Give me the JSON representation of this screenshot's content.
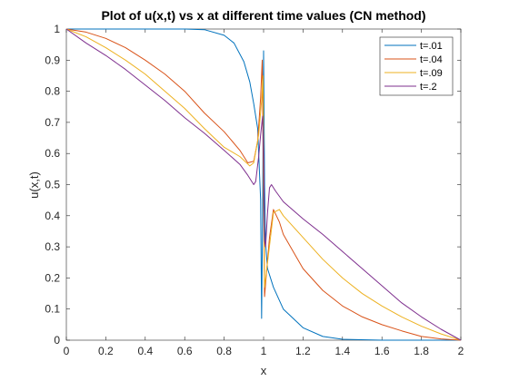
{
  "chart_data": {
    "type": "line",
    "title": "Plot of u(x,t) vs x at different time values (CN method)",
    "xlabel": "x",
    "ylabel": "u(x,t)",
    "xlim": [
      0,
      2
    ],
    "ylim": [
      0,
      1
    ],
    "xticks": [
      "0",
      "0.2",
      "0.4",
      "0.6",
      "0.8",
      "1",
      "1.2",
      "1.4",
      "1.6",
      "1.8",
      "2"
    ],
    "yticks": [
      "0",
      "0.1",
      "0.2",
      "0.3",
      "0.4",
      "0.5",
      "0.6",
      "0.7",
      "0.8",
      "0.9",
      "1"
    ],
    "grid": false,
    "legend_position": "top-right",
    "series": [
      {
        "name": "t=.01",
        "color": "#0072BD",
        "points": [
          [
            0,
            1
          ],
          [
            0.2,
            1
          ],
          [
            0.4,
            1
          ],
          [
            0.6,
            1
          ],
          [
            0.7,
            0.998
          ],
          [
            0.8,
            0.98
          ],
          [
            0.85,
            0.955
          ],
          [
            0.9,
            0.895
          ],
          [
            0.93,
            0.83
          ],
          [
            0.95,
            0.76
          ],
          [
            0.97,
            0.68
          ],
          [
            0.985,
            0.45
          ],
          [
            0.99,
            0.07
          ],
          [
            0.995,
            0.4
          ],
          [
            1.0,
            0.93
          ],
          [
            1.005,
            0.5
          ],
          [
            1.01,
            0.31
          ],
          [
            1.02,
            0.23
          ],
          [
            1.05,
            0.17
          ],
          [
            1.1,
            0.1
          ],
          [
            1.2,
            0.04
          ],
          [
            1.3,
            0.012
          ],
          [
            1.4,
            0.003
          ],
          [
            1.6,
            0
          ],
          [
            2,
            0
          ]
        ]
      },
      {
        "name": "t=.04",
        "color": "#D95319",
        "points": [
          [
            0,
            1
          ],
          [
            0.1,
            0.99
          ],
          [
            0.2,
            0.97
          ],
          [
            0.3,
            0.94
          ],
          [
            0.4,
            0.9
          ],
          [
            0.5,
            0.855
          ],
          [
            0.6,
            0.8
          ],
          [
            0.7,
            0.73
          ],
          [
            0.8,
            0.67
          ],
          [
            0.88,
            0.61
          ],
          [
            0.92,
            0.57
          ],
          [
            0.95,
            0.575
          ],
          [
            0.97,
            0.64
          ],
          [
            0.985,
            0.78
          ],
          [
            0.993,
            0.9
          ],
          [
            1.0,
            0.45
          ],
          [
            1.005,
            0.14
          ],
          [
            1.015,
            0.22
          ],
          [
            1.03,
            0.33
          ],
          [
            1.05,
            0.42
          ],
          [
            1.08,
            0.38
          ],
          [
            1.1,
            0.34
          ],
          [
            1.2,
            0.23
          ],
          [
            1.3,
            0.16
          ],
          [
            1.4,
            0.11
          ],
          [
            1.5,
            0.075
          ],
          [
            1.6,
            0.05
          ],
          [
            1.7,
            0.03
          ],
          [
            1.8,
            0.012
          ],
          [
            1.9,
            0.004
          ],
          [
            2,
            0
          ]
        ]
      },
      {
        "name": "t=.09",
        "color": "#EDB120",
        "points": [
          [
            0,
            1
          ],
          [
            0.1,
            0.975
          ],
          [
            0.2,
            0.94
          ],
          [
            0.3,
            0.9
          ],
          [
            0.4,
            0.855
          ],
          [
            0.5,
            0.8
          ],
          [
            0.6,
            0.745
          ],
          [
            0.7,
            0.68
          ],
          [
            0.8,
            0.62
          ],
          [
            0.88,
            0.59
          ],
          [
            0.93,
            0.56
          ],
          [
            0.95,
            0.57
          ],
          [
            0.975,
            0.66
          ],
          [
            0.99,
            0.77
          ],
          [
            0.997,
            0.85
          ],
          [
            1.0,
            0.6
          ],
          [
            1.005,
            0.17
          ],
          [
            1.02,
            0.25
          ],
          [
            1.05,
            0.41
          ],
          [
            1.08,
            0.42
          ],
          [
            1.1,
            0.4
          ],
          [
            1.2,
            0.33
          ],
          [
            1.3,
            0.26
          ],
          [
            1.4,
            0.2
          ],
          [
            1.5,
            0.15
          ],
          [
            1.6,
            0.11
          ],
          [
            1.7,
            0.075
          ],
          [
            1.8,
            0.045
          ],
          [
            1.9,
            0.02
          ],
          [
            2,
            0
          ]
        ]
      },
      {
        "name": "t=.2",
        "color": "#7E2F8E",
        "points": [
          [
            0,
            1
          ],
          [
            0.1,
            0.955
          ],
          [
            0.2,
            0.915
          ],
          [
            0.3,
            0.87
          ],
          [
            0.4,
            0.82
          ],
          [
            0.5,
            0.77
          ],
          [
            0.6,
            0.715
          ],
          [
            0.7,
            0.665
          ],
          [
            0.8,
            0.61
          ],
          [
            0.88,
            0.565
          ],
          [
            0.92,
            0.53
          ],
          [
            0.95,
            0.5
          ],
          [
            0.96,
            0.51
          ],
          [
            0.975,
            0.59
          ],
          [
            0.985,
            0.66
          ],
          [
            0.995,
            0.72
          ],
          [
            1.0,
            0.6
          ],
          [
            1.005,
            0.32
          ],
          [
            1.01,
            0.3
          ],
          [
            1.02,
            0.41
          ],
          [
            1.03,
            0.49
          ],
          [
            1.04,
            0.5
          ],
          [
            1.06,
            0.48
          ],
          [
            1.1,
            0.445
          ],
          [
            1.2,
            0.39
          ],
          [
            1.3,
            0.34
          ],
          [
            1.4,
            0.285
          ],
          [
            1.5,
            0.23
          ],
          [
            1.6,
            0.175
          ],
          [
            1.7,
            0.12
          ],
          [
            1.8,
            0.075
          ],
          [
            1.9,
            0.035
          ],
          [
            2,
            0
          ]
        ]
      }
    ]
  }
}
